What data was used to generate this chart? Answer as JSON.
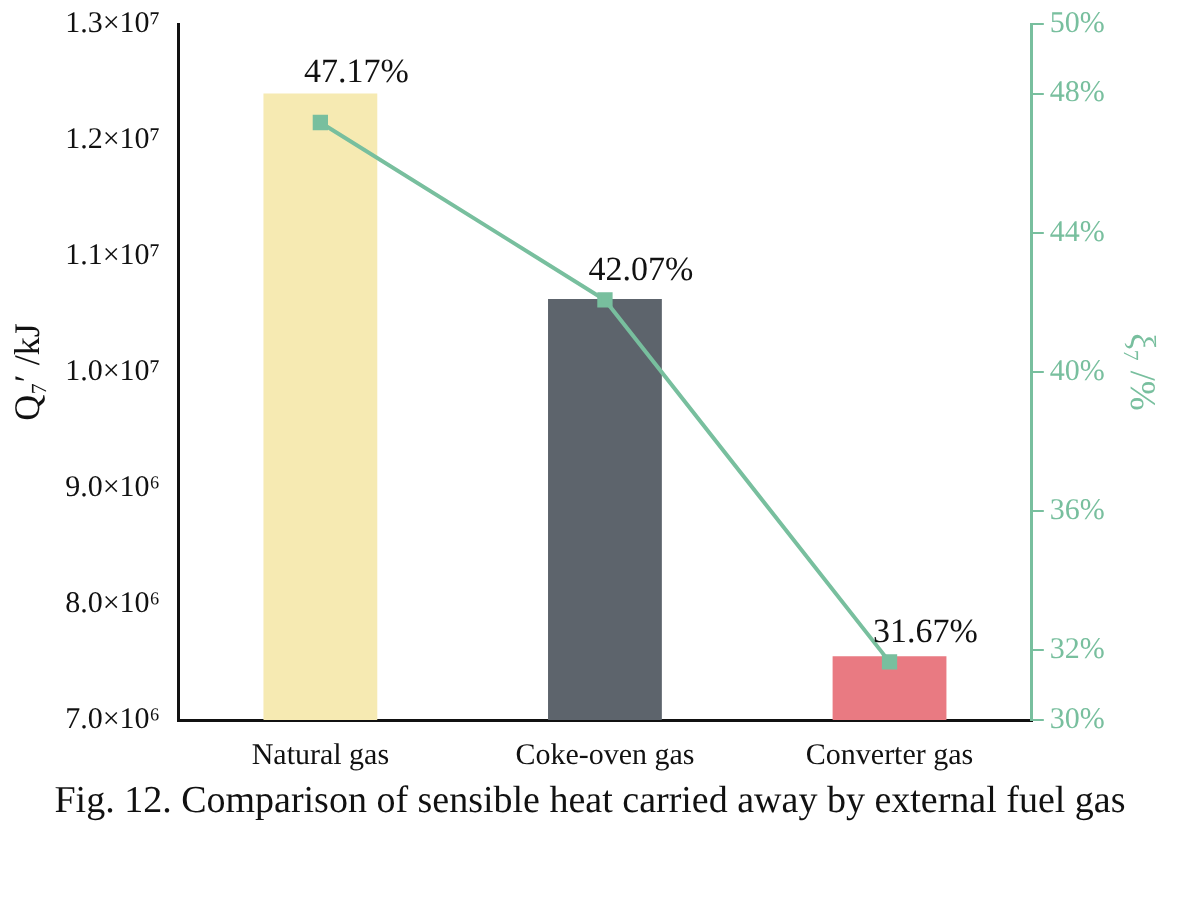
{
  "chart_data": {
    "type": "bar",
    "categories": [
      "Natural gas",
      "Coke-oven gas",
      "Converter gas"
    ],
    "ylabel": "Q₇′ /kJ",
    "y2label": "ξ₇ /%",
    "ylim": [
      7000000,
      13000000
    ],
    "yticks": [
      {
        "value": 7000000,
        "label": "7.0×10⁶"
      },
      {
        "value": 8000000,
        "label": "8.0×10⁶"
      },
      {
        "value": 9000000,
        "label": "9.0×10⁶"
      },
      {
        "value": 10000000,
        "label": "1.0×10⁷"
      },
      {
        "value": 11000000,
        "label": "1.1×10⁷"
      },
      {
        "value": 12000000,
        "label": "1.2×10⁷"
      },
      {
        "value": 13000000,
        "label": "1.3×10⁷"
      }
    ],
    "y2lim": [
      30,
      50
    ],
    "y2ticks": [
      {
        "value": 30,
        "label": "30%"
      },
      {
        "value": 32,
        "label": "32%"
      },
      {
        "value": 36,
        "label": "36%"
      },
      {
        "value": 40,
        "label": "40%"
      },
      {
        "value": 44,
        "label": "44%"
      },
      {
        "value": 48,
        "label": "48%"
      },
      {
        "value": 50,
        "label": "50%"
      }
    ],
    "series": [
      {
        "colors": [
          "#f6eab2",
          "#5d646c",
          "#e97a82"
        ],
        "values": [
          12400000,
          10630000,
          7550000
        ]
      },
      {
        "type": "line",
        "axis": "y2",
        "color": "#78bf9e",
        "marker": "square",
        "values": [
          47.17,
          42.07,
          31.67
        ],
        "value_labels": [
          "47.17%",
          "42.07%",
          "31.67%"
        ]
      }
    ],
    "annotations": [
      "Fig. 12. Comparison of sensible heat carried away by external fuel gas"
    ]
  }
}
